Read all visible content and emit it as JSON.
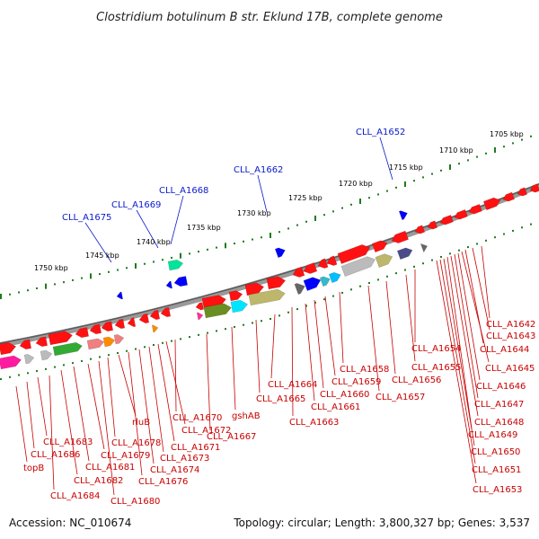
{
  "title": "Clostridium botulinum B str. Eklund 17B, complete genome",
  "footer": {
    "accession": "Accession: NC_010674",
    "summary": "Topology: circular; Length: 3,800,327 bp; Genes: 3,537"
  },
  "colors": {
    "backbone": "#808080",
    "gene_forward": "#ff1111",
    "label_top": "#0a1acb",
    "label_bottom": "#c80000",
    "ticks": "#1f7a1f"
  },
  "scale_labels": [
    "1750 kbp",
    "1745 kbp",
    "1740 kbp",
    "1735 kbp",
    "1730 kbp",
    "1725 kbp",
    "1720 kbp",
    "1715 kbp",
    "1710 kbp",
    "1705 kbp"
  ],
  "top_labels": [
    "CLL_A1675",
    "CLL_A1669",
    "CLL_A1668",
    "CLL_A1662",
    "CLL_A1652"
  ],
  "bottom_labels": [
    "topB",
    "CLL_A1686",
    "CLL_A1683",
    "CLL_A1684",
    "CLL_A1682",
    "CLL_A1681",
    "CLL_A1679",
    "CLL_A1680",
    "CLL_A1678",
    "rluB",
    "CLL_A1676",
    "CLL_A1674",
    "CLL_A1673",
    "CLL_A1671",
    "CLL_A1672",
    "CLL_A1670",
    "CLL_A1667",
    "gshAB",
    "CLL_A1665",
    "CLL_A1664",
    "CLL_A1663",
    "CLL_A1661",
    "CLL_A1660",
    "CLL_A1659",
    "CLL_A1658",
    "CLL_A1657",
    "CLL_A1656",
    "CLL_A1655",
    "CLL_A1654",
    "CLL_A1653",
    "CLL_A1651",
    "CLL_A1650",
    "CLL_A1649",
    "CLL_A1648",
    "CLL_A1647",
    "CLL_A1646",
    "CLL_A1645",
    "CLL_A1644",
    "CLL_A1643",
    "CLL_A1642"
  ]
}
